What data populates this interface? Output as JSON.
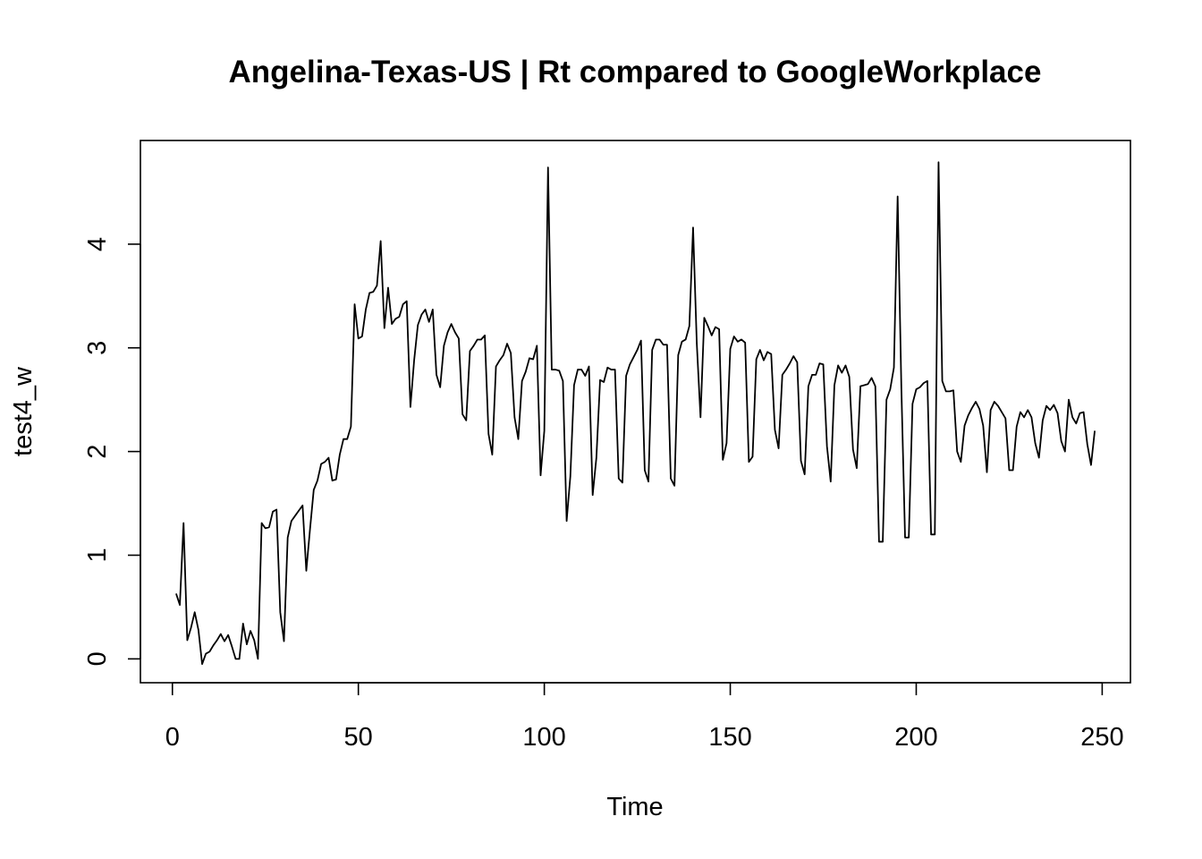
{
  "chart_data": {
    "type": "line",
    "title": "Angelina-Texas-US | Rt compared to GoogleWorkplace",
    "xlabel": "Time",
    "ylabel": "test4_w",
    "xlim": [
      -8.6,
      257.6
    ],
    "ylim": [
      -0.23,
      5.0
    ],
    "xticks": [
      0,
      50,
      100,
      150,
      200,
      250
    ],
    "yticks": [
      0,
      1,
      2,
      3,
      4
    ],
    "grid": false,
    "series": [
      {
        "x": [
          1,
          2,
          3,
          4,
          5,
          6,
          7,
          8,
          9,
          10,
          11,
          12,
          13,
          14,
          15,
          16,
          17,
          18,
          19,
          20,
          21,
          22,
          23,
          24,
          25,
          26,
          27,
          28,
          29,
          30,
          31,
          32,
          33,
          34,
          35,
          36,
          37,
          38,
          39,
          40,
          41,
          42,
          43,
          44,
          45,
          46,
          47,
          48,
          49,
          50,
          51,
          52,
          53,
          54,
          55,
          56,
          57,
          58,
          59,
          60,
          61,
          62,
          63,
          64,
          65,
          66,
          67,
          68,
          69,
          70,
          71,
          72,
          73,
          74,
          75,
          76,
          77,
          78,
          79,
          80,
          81,
          82,
          83,
          84,
          85,
          86,
          87,
          88,
          89,
          90,
          91,
          92,
          93,
          94,
          95,
          96,
          97,
          98,
          99,
          100,
          101,
          102,
          103,
          104,
          105,
          106,
          107,
          108,
          109,
          110,
          111,
          112,
          113,
          114,
          115,
          116,
          117,
          118,
          119,
          120,
          121,
          122,
          123,
          124,
          125,
          126,
          127,
          128,
          129,
          130,
          131,
          132,
          133,
          134,
          135,
          136,
          137,
          138,
          139,
          140,
          141,
          142,
          143,
          144,
          145,
          146,
          147,
          148,
          149,
          150,
          151,
          152,
          153,
          154,
          155,
          156,
          157,
          158,
          159,
          160,
          161,
          162,
          163,
          164,
          165,
          166,
          167,
          168,
          169,
          170,
          171,
          172,
          173,
          174,
          175,
          176,
          177,
          178,
          179,
          180,
          181,
          182,
          183,
          184,
          185,
          186,
          187,
          188,
          189,
          190,
          191,
          192,
          193,
          194,
          195,
          196,
          197,
          198,
          199,
          200,
          201,
          202,
          203,
          204,
          205,
          206,
          207,
          208,
          209,
          210,
          211,
          212,
          213,
          214,
          215,
          216,
          217,
          218,
          219,
          220,
          221,
          222,
          223,
          224,
          225,
          226,
          227,
          228,
          229,
          230,
          231,
          232,
          233,
          234,
          235,
          236,
          237,
          238,
          239,
          240,
          241,
          242,
          243,
          244,
          245,
          246,
          247,
          248
        ],
        "values": [
          0.63,
          0.52,
          1.31,
          0.18,
          0.3,
          0.45,
          0.28,
          -0.05,
          0.05,
          0.07,
          0.13,
          0.18,
          0.24,
          0.17,
          0.23,
          0.12,
          0.0,
          0.0,
          0.34,
          0.14,
          0.27,
          0.18,
          0.0,
          1.31,
          1.26,
          1.27,
          1.42,
          1.44,
          0.45,
          0.17,
          1.17,
          1.33,
          1.38,
          1.43,
          1.48,
          0.85,
          1.25,
          1.63,
          1.72,
          1.88,
          1.9,
          1.94,
          1.72,
          1.73,
          1.97,
          2.12,
          2.12,
          2.24,
          3.42,
          3.09,
          3.11,
          3.37,
          3.53,
          3.54,
          3.6,
          4.03,
          3.19,
          3.58,
          3.23,
          3.28,
          3.3,
          3.42,
          3.45,
          2.43,
          2.88,
          3.22,
          3.32,
          3.37,
          3.25,
          3.37,
          2.74,
          2.62,
          3.02,
          3.15,
          3.23,
          3.15,
          3.09,
          2.36,
          2.3,
          2.97,
          3.02,
          3.08,
          3.08,
          3.12,
          2.17,
          1.97,
          2.82,
          2.88,
          2.93,
          3.04,
          2.95,
          2.33,
          2.12,
          2.68,
          2.77,
          2.9,
          2.89,
          3.02,
          1.77,
          2.2,
          4.74,
          2.79,
          2.79,
          2.78,
          2.68,
          1.33,
          1.76,
          2.64,
          2.79,
          2.79,
          2.73,
          2.82,
          1.58,
          1.94,
          2.69,
          2.67,
          2.81,
          2.79,
          2.79,
          1.74,
          1.7,
          2.73,
          2.84,
          2.91,
          2.98,
          3.07,
          1.82,
          1.71,
          2.98,
          3.08,
          3.08,
          3.03,
          3.03,
          1.74,
          1.67,
          2.93,
          3.06,
          3.08,
          3.21,
          4.16,
          3.04,
          2.33,
          3.29,
          3.21,
          3.12,
          3.2,
          3.18,
          1.92,
          2.08,
          2.99,
          3.11,
          3.06,
          3.08,
          3.05,
          1.9,
          1.95,
          2.89,
          2.98,
          2.88,
          2.96,
          2.94,
          2.21,
          2.03,
          2.74,
          2.79,
          2.85,
          2.92,
          2.86,
          1.91,
          1.78,
          2.63,
          2.74,
          2.74,
          2.85,
          2.84,
          2.05,
          1.71,
          2.64,
          2.83,
          2.76,
          2.83,
          2.72,
          2.02,
          1.84,
          2.63,
          2.64,
          2.65,
          2.71,
          2.63,
          1.13,
          1.13,
          2.5,
          2.6,
          2.81,
          4.46,
          2.62,
          1.17,
          1.17,
          2.46,
          2.6,
          2.62,
          2.66,
          2.68,
          1.2,
          1.2,
          4.79,
          2.68,
          2.58,
          2.58,
          2.59,
          2.0,
          1.9,
          2.25,
          2.35,
          2.42,
          2.48,
          2.41,
          2.25,
          1.8,
          2.4,
          2.48,
          2.44,
          2.38,
          2.32,
          1.82,
          1.82,
          2.24,
          2.38,
          2.33,
          2.4,
          2.33,
          2.08,
          1.94,
          2.3,
          2.44,
          2.4,
          2.45,
          2.37,
          2.1,
          2.0,
          2.5,
          2.33,
          2.27,
          2.37,
          2.38,
          2.07,
          1.87,
          2.2
        ]
      }
    ]
  }
}
